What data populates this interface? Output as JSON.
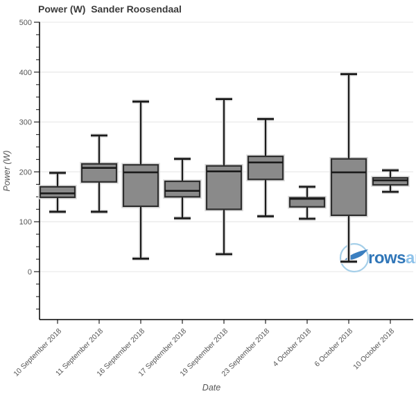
{
  "title": "Power (W)  Sander Roosendaal",
  "watermark": {
    "text_primary": "rows",
    "text_secondary": "andall",
    "color_primary": "#3076b8",
    "color_secondary": "#8ec2ea",
    "circle_color": "#a5cfe9"
  },
  "chart_data": {
    "type": "box",
    "title": "Power (W)  Sander Roosendaal",
    "xlabel": "Date",
    "ylabel": "Power (W)",
    "legend": "none",
    "grid": "horizontal-major",
    "ylim": [
      -96,
      500
    ],
    "y_major_ticks": [
      0,
      100,
      200,
      300,
      400,
      500
    ],
    "y_minor_step": 25,
    "categories": [
      "10 September 2018",
      "11 September 2018",
      "16 September 2018",
      "17 September 2018",
      "19 September 2018",
      "23 September 2018",
      "4 October 2018",
      "6 October 2018",
      "10 October 2018"
    ],
    "series": [
      {
        "name": "Power (W)",
        "stats": [
          {
            "low": 120,
            "q1": 149,
            "median": 157,
            "q3": 170,
            "high": 198
          },
          {
            "low": 120,
            "q1": 180,
            "median": 208,
            "q3": 216,
            "high": 273
          },
          {
            "low": 26,
            "q1": 131,
            "median": 199,
            "q3": 214,
            "high": 341
          },
          {
            "low": 107,
            "q1": 150,
            "median": 162,
            "q3": 181,
            "high": 226
          },
          {
            "low": 35,
            "q1": 125,
            "median": 201,
            "q3": 212,
            "high": 346
          },
          {
            "low": 111,
            "q1": 185,
            "median": 219,
            "q3": 231,
            "high": 306
          },
          {
            "low": 106,
            "q1": 130,
            "median": 146,
            "q3": 148,
            "high": 170
          },
          {
            "low": 20,
            "q1": 113,
            "median": 199,
            "q3": 226,
            "high": 396
          },
          {
            "low": 160,
            "q1": 174,
            "median": 183,
            "q3": 188,
            "high": 203
          }
        ]
      }
    ],
    "colors": {
      "box_fill": "#8a8a8a",
      "box_line": "#2e2e2e",
      "whisker_line": "#1a1a1a",
      "halo": "#d9d9d9",
      "grid": "#e9e9e9",
      "spine": "#000000",
      "tick": "#333333",
      "tick_label": "#555555",
      "axis_title": "#555555",
      "title": "#3a3a3a"
    }
  }
}
